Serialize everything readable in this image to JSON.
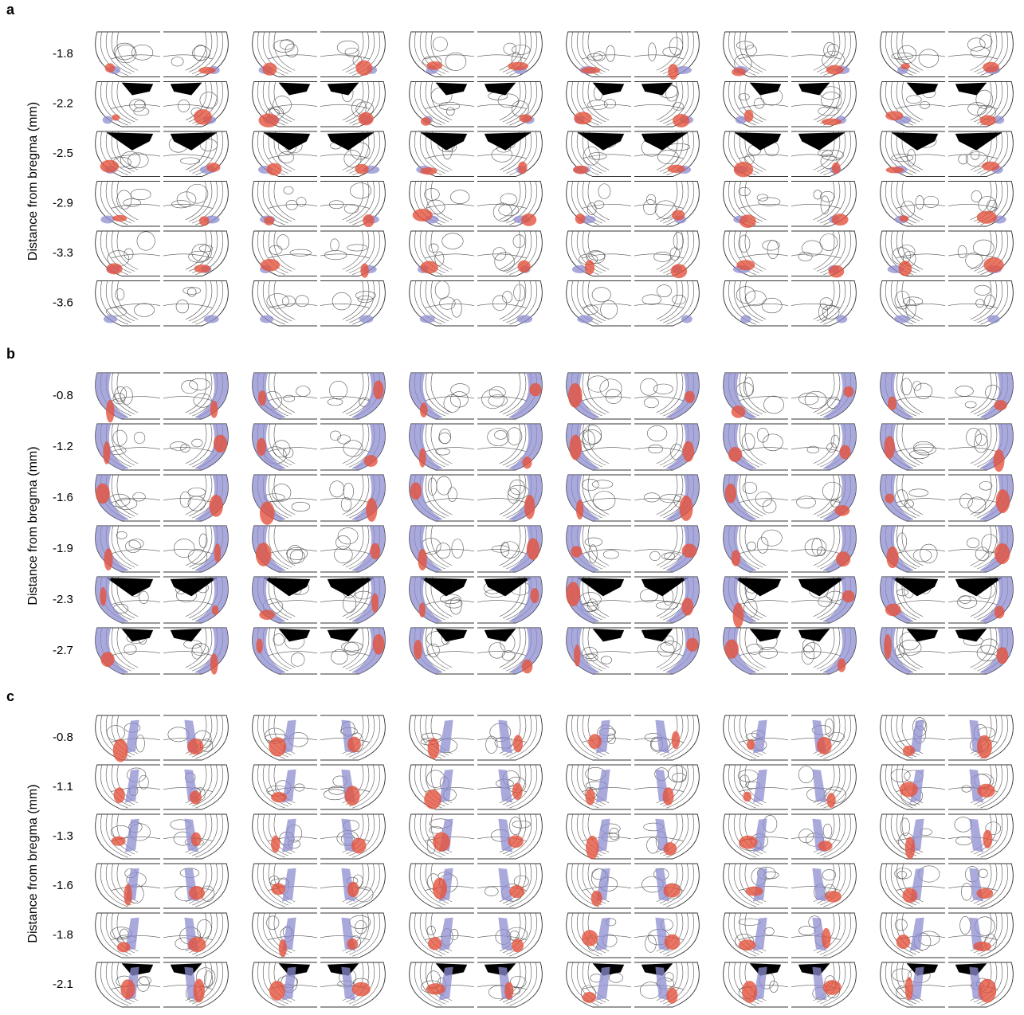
{
  "panels": [
    {
      "label": "a",
      "axis_label": "Distance from bregma (mm)",
      "rows": [
        "-1.8",
        "-2.2",
        "-2.5",
        "-2.9",
        "-3.3",
        "-3.6"
      ]
    },
    {
      "label": "b",
      "axis_label": "Distance from bregma (mm)",
      "rows": [
        "-0.8",
        "-1.2",
        "-1.6",
        "-1.9",
        "-2.3",
        "-2.7"
      ]
    },
    {
      "label": "c",
      "axis_label": "Distance from bregma (mm)",
      "rows": [
        "-0.8",
        "-1.1",
        "-1.3",
        "-1.6",
        "-1.8",
        "-2.1"
      ]
    }
  ]
}
